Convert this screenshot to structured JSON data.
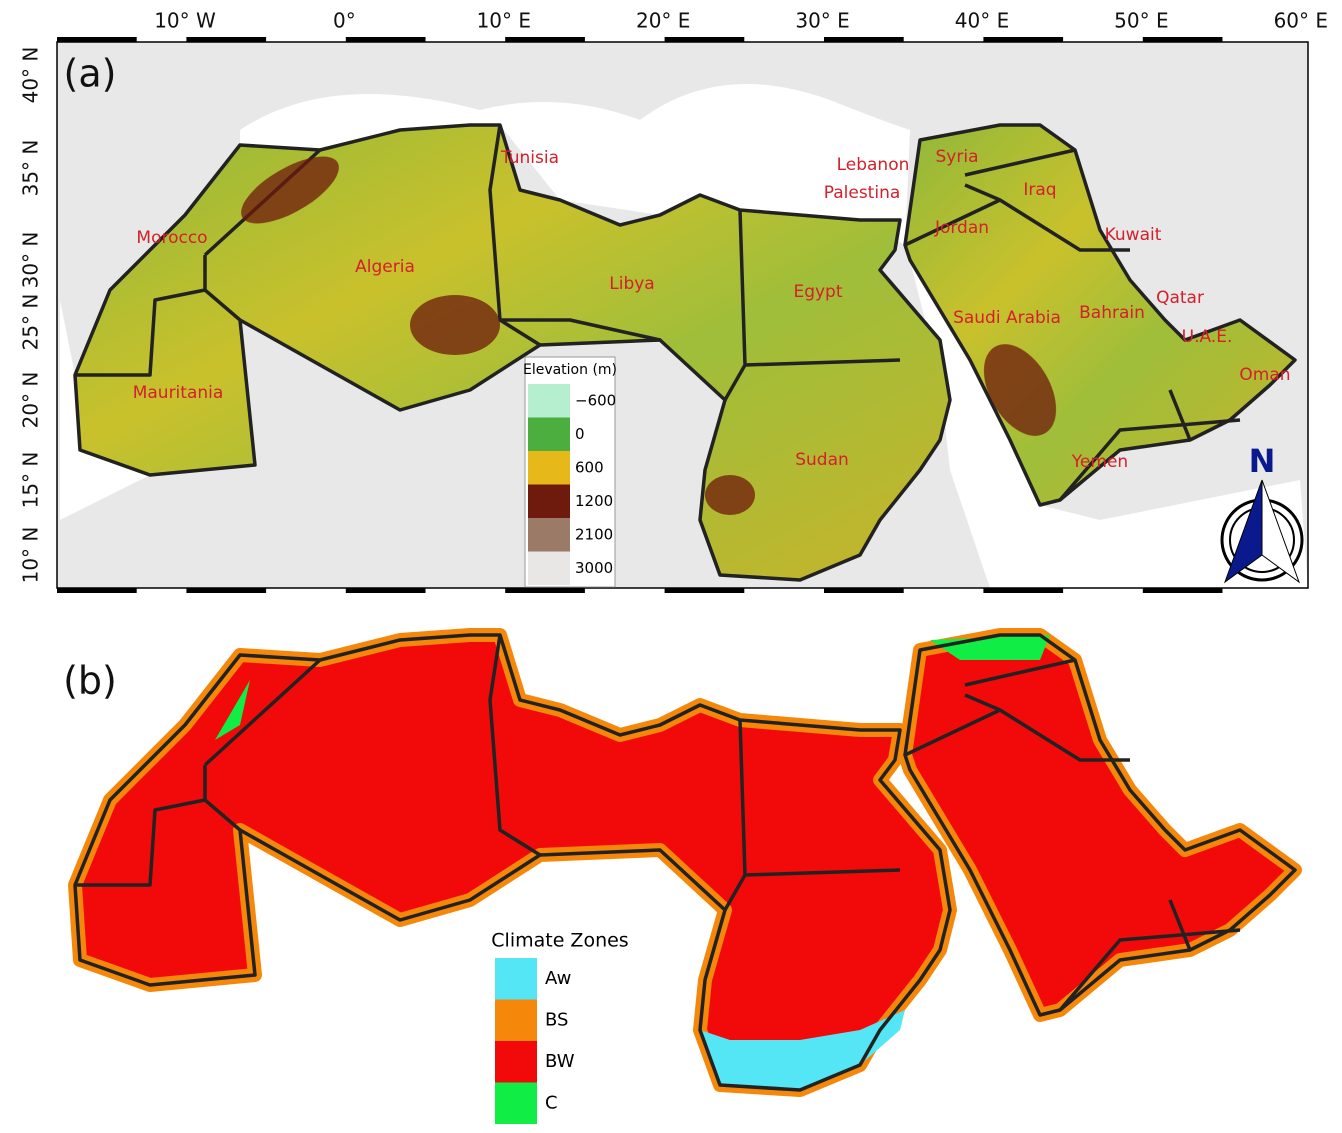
{
  "panel_a": {
    "label": "(a)",
    "lon_labels": [
      "10° W",
      "0°",
      "10° E",
      "20° E",
      "30° E",
      "40° E",
      "50° E",
      "60° E"
    ],
    "lat_labels": [
      "40° N",
      "35° N",
      "30° N",
      "25° N",
      "20° N",
      "15° N",
      "10° N"
    ],
    "countries": [
      "Morocco",
      "Algeria",
      "Tunisia",
      "Libya",
      "Egypt",
      "Lebanon",
      "Palestina",
      "Syria",
      "Iraq",
      "Jordan",
      "Kuwait",
      "Saudi Arabia",
      "Bahrain",
      "Qatar",
      "U.A.E.",
      "Oman",
      "Yemen",
      "Sudan",
      "Mauritania"
    ],
    "legend": {
      "title": "Elevation (m)",
      "items": [
        {
          "label": "−600",
          "color": "#b5efcf"
        },
        {
          "label": "0",
          "color": "#4cae3e"
        },
        {
          "label": "600",
          "color": "#e6b81a"
        },
        {
          "label": "1200",
          "color": "#6e1a0c"
        },
        {
          "label": "2100",
          "color": "#9c7a68"
        },
        {
          "label": "3000",
          "color": "#e9e6e6"
        }
      ]
    },
    "north": "N"
  },
  "panel_b": {
    "label": "(b)",
    "legend": {
      "title": "Climate Zones",
      "items": [
        {
          "label": "Aw",
          "color": "#55e6f5"
        },
        {
          "label": "BS",
          "color": "#f5870a"
        },
        {
          "label": "BW",
          "color": "#f20a0a"
        },
        {
          "label": "C",
          "color": "#10ee46"
        }
      ]
    }
  }
}
